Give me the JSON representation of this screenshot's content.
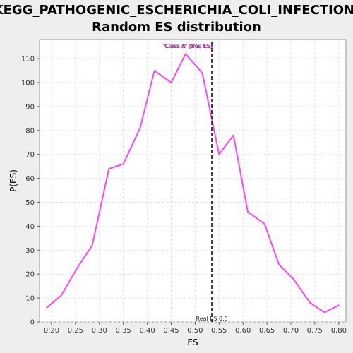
{
  "chart_data": {
    "type": "line",
    "title_lines": [
      "KEGG_PATHOGENIC_ESCHERICHIA_COLI_INFECTION:",
      "Random ES distribution"
    ],
    "xlabel": "ES",
    "ylabel": "P(ES)",
    "xlim": [
      0.175,
      0.815
    ],
    "ylim": [
      0,
      118
    ],
    "x_ticks": [
      "0.20",
      "0.25",
      "0.30",
      "0.35",
      "0.40",
      "0.45",
      "0.50",
      "0.55",
      "0.60",
      "0.65",
      "0.70",
      "0.75",
      "0.80"
    ],
    "y_ticks": [
      "0",
      "10",
      "20",
      "30",
      "40",
      "50",
      "60",
      "70",
      "80",
      "90",
      "100",
      "110"
    ],
    "grid": true,
    "series": [
      {
        "color": "#ff44ff",
        "x": [
          0.19,
          0.22,
          0.255,
          0.285,
          0.32,
          0.35,
          0.385,
          0.415,
          0.45,
          0.48,
          0.515,
          0.55,
          0.58,
          0.61,
          0.645,
          0.675,
          0.705,
          0.74,
          0.77,
          0.8
        ],
        "y": [
          6,
          11,
          23,
          32,
          64,
          66,
          81,
          105,
          100,
          112,
          104,
          70,
          78,
          46,
          41,
          24,
          18,
          8,
          4,
          7
        ]
      }
    ],
    "real_es": {
      "value": 0.535,
      "label": "Real ES 0.5",
      "color": "#333333"
    },
    "legend_labels": [
      {
        "text": "'Class B' (Pos ES)",
        "color": "#cc33cc"
      },
      {
        "text": "'Class A' (Neg ES)",
        "color": "#6633cc"
      },
      {
        "text": "'Class B' (Pos ES)",
        "color": "#cc3366"
      }
    ]
  }
}
